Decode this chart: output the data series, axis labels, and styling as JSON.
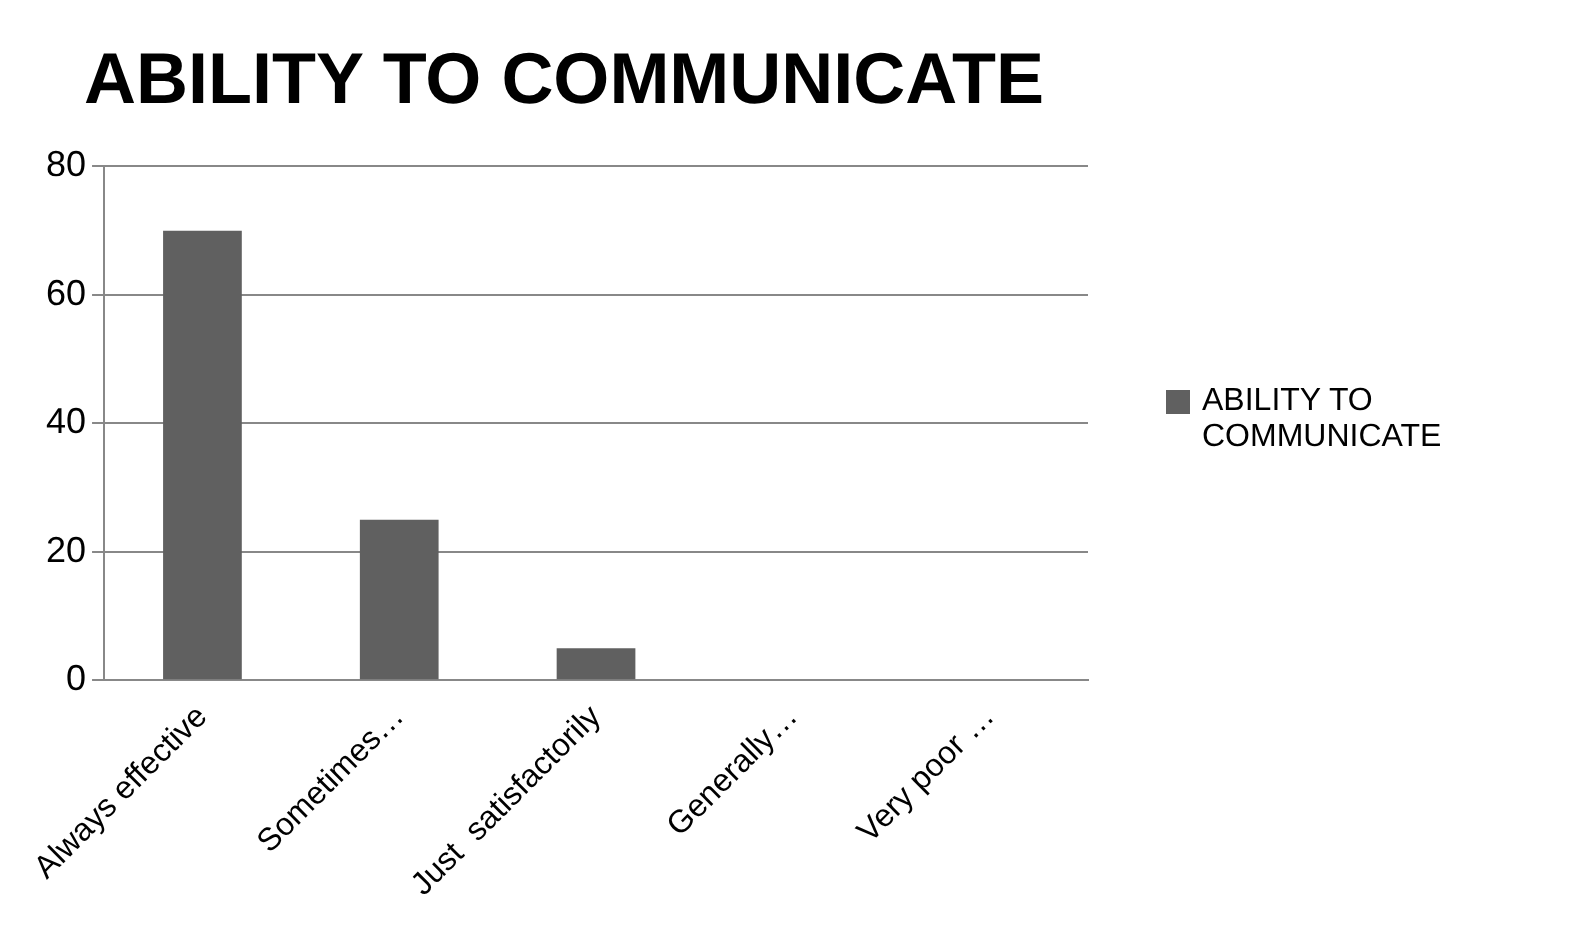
{
  "chart_data": {
    "type": "bar",
    "title": "ABILITY TO COMMUNICATE",
    "categories": [
      "Always effective",
      "Sometimes…",
      "Just  satisfactorily",
      "Generally…",
      "Very poor …"
    ],
    "series": [
      {
        "name": "ABILITY TO COMMUNICATE",
        "color": "#606060",
        "values": [
          70,
          25,
          5,
          0,
          0
        ]
      }
    ],
    "ylim": [
      0,
      80
    ],
    "yticks": [
      0,
      20,
      40,
      60,
      80
    ],
    "grid": "y",
    "legend": "right"
  }
}
